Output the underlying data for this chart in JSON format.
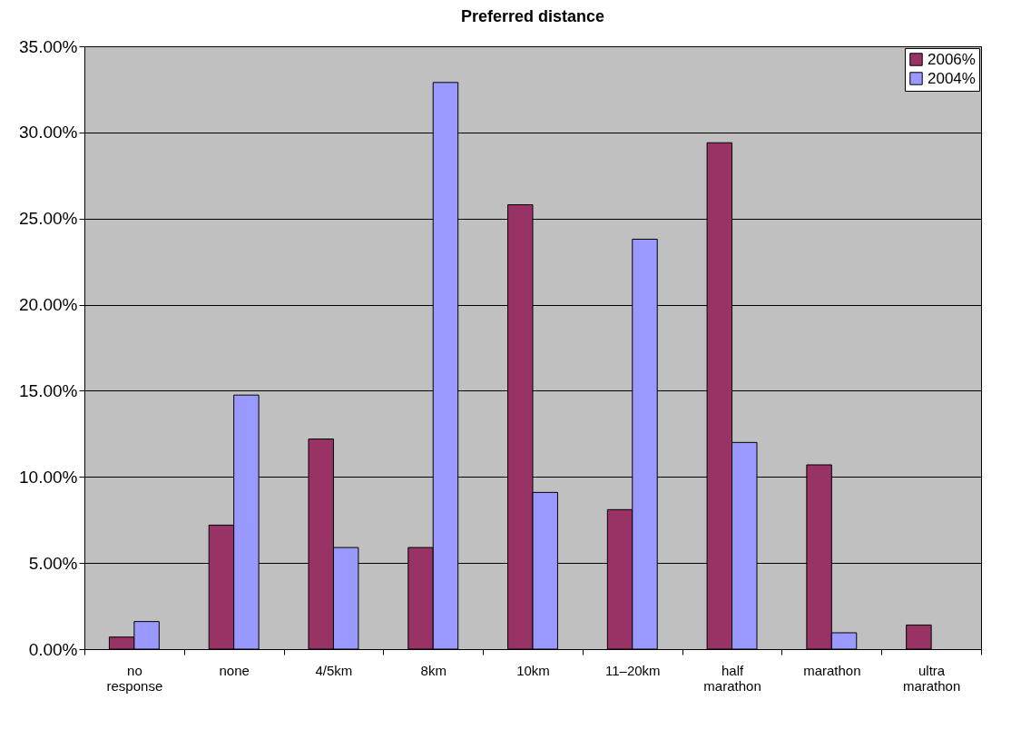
{
  "chart_data": {
    "type": "bar",
    "title": "Preferred distance",
    "categories": [
      "no response",
      "none",
      "4/5km",
      "8km",
      "10km",
      "11–20km",
      "half marathon",
      "marathon",
      "ultra marathon"
    ],
    "series": [
      {
        "name": "2006%",
        "color": "#993366",
        "values": [
          0.7,
          7.2,
          12.2,
          5.9,
          25.8,
          8.1,
          29.4,
          10.7,
          1.4
        ]
      },
      {
        "name": "2004%",
        "color": "#9999ff",
        "values": [
          1.6,
          14.75,
          5.9,
          32.9,
          9.1,
          23.8,
          12.0,
          0.95,
          null
        ]
      }
    ],
    "ylim": [
      0,
      35
    ],
    "yticks": [
      {
        "value": 0,
        "label": "0.00%"
      },
      {
        "value": 5,
        "label": "5.00%"
      },
      {
        "value": 10,
        "label": "10.00%"
      },
      {
        "value": 15,
        "label": "15.00%"
      },
      {
        "value": 20,
        "label": "20.00%"
      },
      {
        "value": 25,
        "label": "25.00%"
      },
      {
        "value": 30,
        "label": "30.00%"
      },
      {
        "value": 35,
        "label": "35.00%"
      }
    ],
    "grid": "y",
    "legend": "top right"
  }
}
